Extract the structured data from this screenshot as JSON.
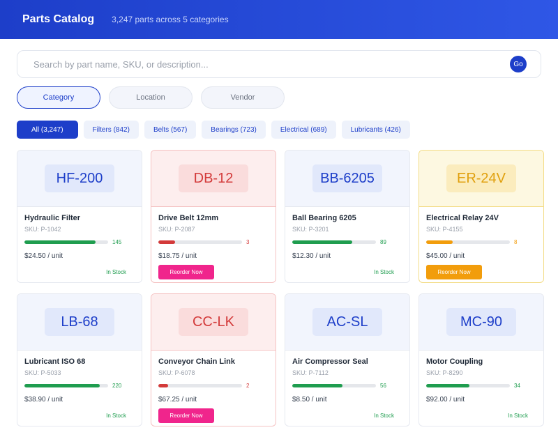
{
  "header": {
    "title": "Parts Catalog",
    "subtitle": "3,247 parts across 5 categories"
  },
  "search": {
    "placeholder": "Search by part name, SKU, or description...",
    "value": "",
    "go_label": "Go"
  },
  "tabs": [
    {
      "label": "Category",
      "active": true
    },
    {
      "label": "Location",
      "active": false
    },
    {
      "label": "Vendor",
      "active": false
    }
  ],
  "filters": [
    {
      "label": "All (3,247)",
      "active": true
    },
    {
      "label": "Filters (842)",
      "active": false
    },
    {
      "label": "Belts (567)",
      "active": false
    },
    {
      "label": "Bearings (723)",
      "active": false
    },
    {
      "label": "Electrical (689)",
      "active": false
    },
    {
      "label": "Lubricants (426)",
      "active": false
    }
  ],
  "colors": {
    "accent": "#1d3ec9",
    "ok": "#1f9d4f",
    "low": "#d33a3a",
    "warn": "#f29d0c",
    "reorder": "#f0258c"
  },
  "parts": [
    {
      "code": "HF-200",
      "name": "Hydraulic Filter",
      "sku": "SKU: P-1042",
      "qty": "145",
      "level": 0.85,
      "price": "$24.50 / unit",
      "status": "ok",
      "status_label": "In Stock"
    },
    {
      "code": "DB-12",
      "name": "Drive Belt 12mm",
      "sku": "SKU: P-2087",
      "qty": "3",
      "level": 0.2,
      "price": "$18.75 / unit",
      "status": "low",
      "status_label": "Reorder Now"
    },
    {
      "code": "BB-6205",
      "name": "Ball Bearing 6205",
      "sku": "SKU: P-3201",
      "qty": "89",
      "level": 0.72,
      "price": "$12.30 / unit",
      "status": "ok",
      "status_label": "In Stock"
    },
    {
      "code": "ER-24V",
      "name": "Electrical Relay 24V",
      "sku": "SKU: P-4155",
      "qty": "8",
      "level": 0.32,
      "price": "$45.00 / unit",
      "status": "warn",
      "status_label": "Reorder Now"
    },
    {
      "code": "LB-68",
      "name": "Lubricant ISO 68",
      "sku": "SKU: P-5033",
      "qty": "220",
      "level": 0.9,
      "price": "$38.90 / unit",
      "status": "ok",
      "status_label": "In Stock"
    },
    {
      "code": "CC-LK",
      "name": "Conveyor Chain Link",
      "sku": "SKU: P-6078",
      "qty": "2",
      "level": 0.12,
      "price": "$67.25 / unit",
      "status": "low",
      "status_label": "Reorder Now"
    },
    {
      "code": "AC-SL",
      "name": "Air Compressor Seal",
      "sku": "SKU: P-7112",
      "qty": "56",
      "level": 0.6,
      "price": "$8.50 / unit",
      "status": "ok",
      "status_label": "In Stock"
    },
    {
      "code": "MC-90",
      "name": "Motor Coupling",
      "sku": "SKU: P-8290",
      "qty": "34",
      "level": 0.52,
      "price": "$92.00 / unit",
      "status": "ok",
      "status_label": "In Stock"
    }
  ]
}
